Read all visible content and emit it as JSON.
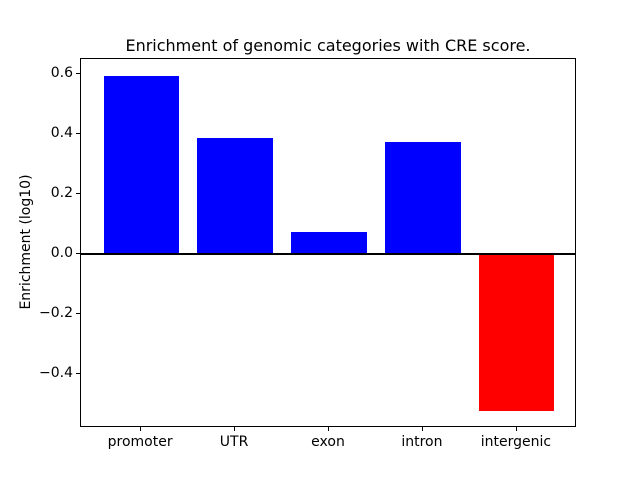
{
  "chart_data": {
    "type": "bar",
    "title": "Enrichment of genomic categories with CRE score.",
    "xlabel": "",
    "ylabel": "Enrichment (log10)",
    "categories": [
      "promoter",
      "UTR",
      "exon",
      "intron",
      "intergenic"
    ],
    "values": [
      0.595,
      0.386,
      0.073,
      0.375,
      -0.526
    ],
    "bar_colors": [
      "#0000ff",
      "#0000ff",
      "#0000ff",
      "#0000ff",
      "#ff0000"
    ],
    "positive_color": "#0000ff",
    "negative_color": "#ff0000",
    "bar_width_fraction": 0.8,
    "xlim": [
      -0.64,
      4.64
    ],
    "ylim": [
      -0.582,
      0.651
    ],
    "yticks": [
      {
        "value": 0.6,
        "label": "0.6"
      },
      {
        "value": 0.4,
        "label": "0.4"
      },
      {
        "value": 0.2,
        "label": "0.2"
      },
      {
        "value": 0.0,
        "label": "0.0"
      },
      {
        "value": -0.2,
        "label": "−0.2"
      },
      {
        "value": -0.4,
        "label": "−0.4"
      }
    ],
    "grid": false,
    "legend": null,
    "zero_line": true,
    "frame_color": "#000000",
    "background_color": "#ffffff"
  }
}
